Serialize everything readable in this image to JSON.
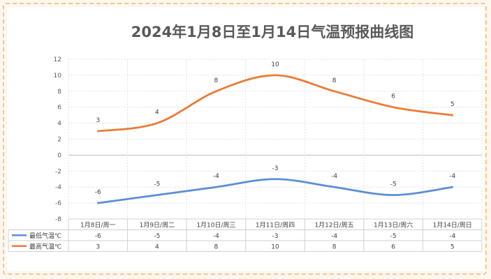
{
  "chart_data": {
    "type": "line",
    "title": "2024年1月8日至1月14日气温预报曲线图",
    "categories": [
      "1月8日/周一",
      "1月9日/周二",
      "1月10日/周三",
      "1月11日/周四",
      "1月12日/周五",
      "1月13日/周六",
      "1月14日/周日"
    ],
    "series": [
      {
        "name": "最低气温℃",
        "color": "#5b8ed6",
        "values": [
          -6,
          -5,
          -4,
          -3,
          -4,
          -5,
          -4
        ]
      },
      {
        "name": "最高气温℃",
        "color": "#ec7a34",
        "values": [
          3,
          4,
          8,
          10,
          8,
          6,
          5
        ]
      }
    ],
    "ylim": [
      -8,
      12
    ],
    "yticks": [
      12,
      10,
      8,
      6,
      4,
      2,
      0,
      -2,
      -4,
      -6,
      -8
    ],
    "grid": true,
    "data_table": true,
    "data_labels": true
  }
}
